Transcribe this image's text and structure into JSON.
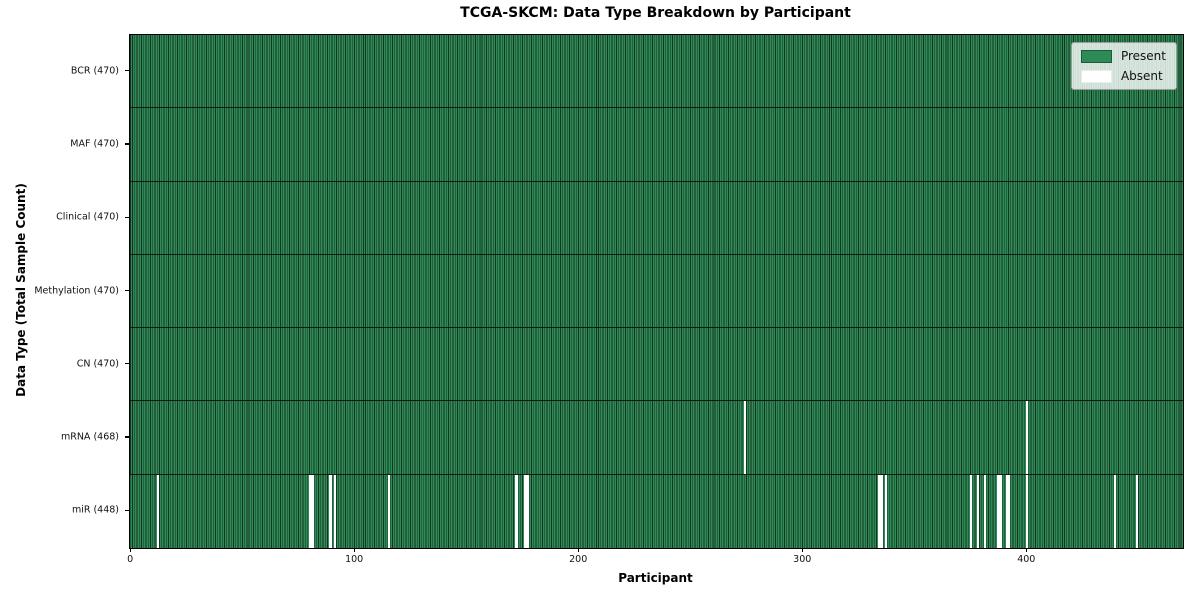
{
  "chart_data": {
    "type": "heatmap",
    "title": "TCGA-SKCM: Data Type Breakdown by Participant",
    "xlabel": "Participant",
    "ylabel": "Data Type (Total Sample Count)",
    "n_participants": 470,
    "x_ticks": [
      0,
      100,
      200,
      300,
      400
    ],
    "grid": false,
    "colors": {
      "present": "#2e8b57",
      "absent": "#ffffff",
      "cell_edge": "#14341f",
      "background": "#ffffff"
    },
    "legend": {
      "position": "upper-right",
      "items": [
        {
          "key": "present",
          "label": "Present",
          "color": "#2e8b57"
        },
        {
          "key": "absent",
          "label": "Absent",
          "color": "#ffffff"
        }
      ]
    },
    "rows": [
      {
        "key": "bcr",
        "label": "BCR (470)",
        "data_type": "BCR",
        "total_samples": 470,
        "absent_participants": []
      },
      {
        "key": "maf",
        "label": "MAF (470)",
        "data_type": "MAF",
        "total_samples": 470,
        "absent_participants": []
      },
      {
        "key": "clinical",
        "label": "Clinical (470)",
        "data_type": "Clinical",
        "total_samples": 470,
        "absent_participants": []
      },
      {
        "key": "methylation",
        "label": "Methylation (470)",
        "data_type": "Methylation",
        "total_samples": 470,
        "absent_participants": []
      },
      {
        "key": "cn",
        "label": "CN (470)",
        "data_type": "CN",
        "total_samples": 470,
        "absent_participants": []
      },
      {
        "key": "mrna",
        "label": "mRNA (468)",
        "data_type": "mRNA",
        "total_samples": 468,
        "absent_participants": [
          274,
          400
        ]
      },
      {
        "key": "mir",
        "label": "miR (448)",
        "data_type": "miR",
        "total_samples": 448,
        "absent_participants": [
          12,
          80,
          81,
          89,
          91,
          115,
          172,
          176,
          177,
          334,
          335,
          337,
          375,
          378,
          381,
          387,
          388,
          391,
          392,
          400,
          439,
          449
        ]
      }
    ]
  }
}
